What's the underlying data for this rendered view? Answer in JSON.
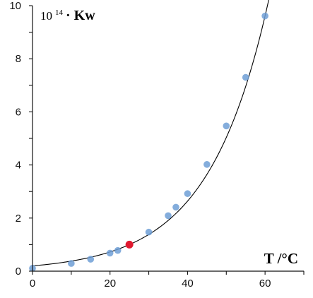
{
  "chart_data": {
    "type": "scatter",
    "title": "",
    "xlabel": "T /°C",
    "ylabel_prefix": "10",
    "ylabel_exponent": "14",
    "ylabel_suffix": "· Kw",
    "xlim": [
      0,
      70
    ],
    "ylim": [
      0,
      10
    ],
    "x_ticks": [
      0,
      20,
      40,
      60
    ],
    "y_ticks": [
      0,
      2,
      4,
      6,
      8,
      10
    ],
    "grid": false,
    "legend": "none",
    "series": [
      {
        "values": [
          {
            "x": 0,
            "y": 0.11
          },
          {
            "x": 10,
            "y": 0.29
          },
          {
            "x": 15,
            "y": 0.45
          },
          {
            "x": 20,
            "y": 0.68
          },
          {
            "x": 22,
            "y": 0.78
          },
          {
            "x": 30,
            "y": 1.47
          },
          {
            "x": 35,
            "y": 2.09
          },
          {
            "x": 37,
            "y": 2.41
          },
          {
            "x": 40,
            "y": 2.92
          },
          {
            "x": 45,
            "y": 4.02
          },
          {
            "x": 50,
            "y": 5.47
          },
          {
            "x": 55,
            "y": 7.3
          },
          {
            "x": 60,
            "y": 9.61
          }
        ],
        "color": "#6f9fd6"
      },
      {
        "values": [
          {
            "x": 25,
            "y": 1.0
          }
        ],
        "color": "#e0192f"
      }
    ],
    "fit_curve": {
      "kind": "exponential",
      "color": "#000000"
    }
  }
}
